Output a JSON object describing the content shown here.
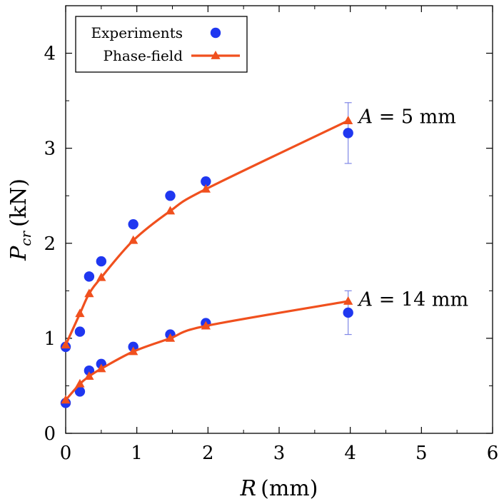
{
  "chart_data": {
    "type": "scatter",
    "xlabel": {
      "var": "R",
      "unit": "(mm)"
    },
    "ylabel": {
      "var": "P",
      "sub": "cr",
      "unit": "(kN)"
    },
    "xlim": [
      0,
      6
    ],
    "ylim": [
      0,
      4.5
    ],
    "xticks": [
      0,
      1,
      2,
      3,
      4,
      5,
      6
    ],
    "yticks": [
      0,
      1,
      2,
      3,
      4
    ],
    "xtick_labels": [
      "0",
      "1",
      "2",
      "3",
      "4",
      "5",
      "6"
    ],
    "ytick_labels": [
      "0",
      "1",
      "2",
      "3",
      "4"
    ],
    "grid": false,
    "legend": {
      "position": "top-left",
      "entries": [
        {
          "label": "Experiments",
          "marker": "circle"
        },
        {
          "label": "Phase-field",
          "marker": "triangle-line"
        }
      ]
    },
    "colors": {
      "experiments": "#1f37f0",
      "phase_field": "#f0501e",
      "errorbar": "#7f86e6"
    },
    "series": [
      {
        "name": "Experiments",
        "group": "A = 5 mm",
        "kind": "points",
        "x": [
          0.0,
          0.2,
          0.33,
          0.5,
          0.95,
          1.47,
          1.97,
          3.97
        ],
        "y": [
          0.91,
          1.07,
          1.65,
          1.81,
          2.2,
          2.5,
          2.65,
          3.16
        ],
        "errorbar": {
          "x": 3.97,
          "low": 2.84,
          "high": 3.48
        }
      },
      {
        "name": "Phase-field",
        "group": "A = 5 mm",
        "kind": "line-triangles",
        "x": [
          0.0,
          0.2,
          0.33,
          0.5,
          0.95,
          1.47,
          1.97,
          3.97
        ],
        "y": [
          0.93,
          1.26,
          1.47,
          1.64,
          2.03,
          2.34,
          2.57,
          3.29
        ]
      },
      {
        "name": "Experiments",
        "group": "A = 14 mm",
        "kind": "points",
        "x": [
          0.0,
          0.2,
          0.33,
          0.5,
          0.95,
          1.47,
          1.97,
          3.97
        ],
        "y": [
          0.32,
          0.44,
          0.66,
          0.73,
          0.91,
          1.04,
          1.16,
          1.27
        ],
        "errorbar": {
          "x": 3.97,
          "low": 1.04,
          "high": 1.5
        }
      },
      {
        "name": "Phase-field",
        "group": "A = 14 mm",
        "kind": "line-triangles",
        "x": [
          0.0,
          0.2,
          0.33,
          0.5,
          0.95,
          1.47,
          1.97,
          3.97
        ],
        "y": [
          0.35,
          0.52,
          0.6,
          0.68,
          0.86,
          1.0,
          1.13,
          1.39
        ]
      }
    ],
    "annotations": [
      {
        "text": "A = 5 mm",
        "x": 4.12,
        "y": 3.33
      },
      {
        "text": "A = 14 mm",
        "x": 4.12,
        "y": 1.41
      }
    ]
  }
}
